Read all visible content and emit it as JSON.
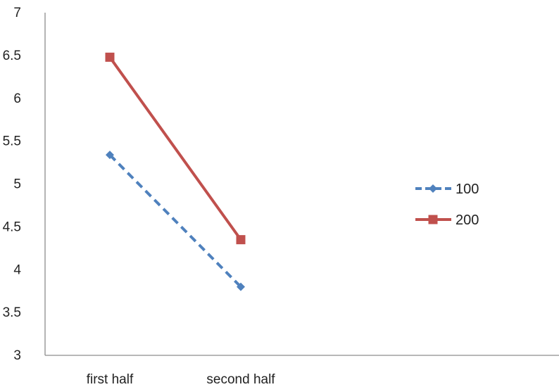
{
  "chart_data": {
    "type": "line",
    "categories": [
      "first half",
      "second half"
    ],
    "y_ticks": [
      "3",
      "3.5",
      "4",
      "4.5",
      "5",
      "5.5",
      "6",
      "6.5",
      "7"
    ],
    "ylim": [
      3,
      7
    ],
    "grid": false,
    "legend_position": "right",
    "series": [
      {
        "name": "100",
        "values": [
          5.34,
          3.8
        ],
        "color": "#4f81bd",
        "line_style": "dashed",
        "marker": "diamond"
      },
      {
        "name": "200",
        "values": [
          6.48,
          4.35
        ],
        "color": "#c0504d",
        "line_style": "solid",
        "marker": "square"
      }
    ]
  }
}
